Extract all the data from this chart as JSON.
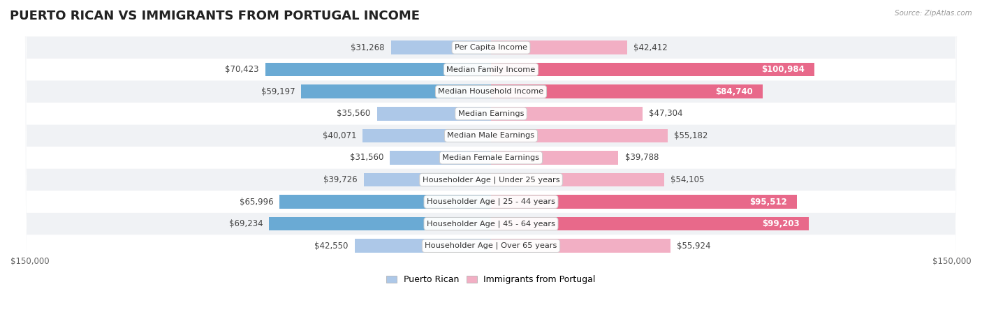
{
  "title": "PUERTO RICAN VS IMMIGRANTS FROM PORTUGAL INCOME",
  "source": "Source: ZipAtlas.com",
  "categories": [
    "Per Capita Income",
    "Median Family Income",
    "Median Household Income",
    "Median Earnings",
    "Median Male Earnings",
    "Median Female Earnings",
    "Householder Age | Under 25 years",
    "Householder Age | 25 - 44 years",
    "Householder Age | 45 - 64 years",
    "Householder Age | Over 65 years"
  ],
  "puerto_rican": [
    31268,
    70423,
    59197,
    35560,
    40071,
    31560,
    39726,
    65996,
    69234,
    42550
  ],
  "portugal": [
    42412,
    100984,
    84740,
    47304,
    55182,
    39788,
    54105,
    95512,
    99203,
    55924
  ],
  "puerto_rican_labels": [
    "$31,268",
    "$70,423",
    "$59,197",
    "$35,560",
    "$40,071",
    "$31,560",
    "$39,726",
    "$65,996",
    "$69,234",
    "$42,550"
  ],
  "portugal_labels": [
    "$42,412",
    "$100,984",
    "$84,740",
    "$47,304",
    "$55,182",
    "$39,788",
    "$54,105",
    "$95,512",
    "$99,203",
    "$55,924"
  ],
  "color_puerto_rican_light": "#adc8e8",
  "color_puerto_rican_dark": "#6aaad4",
  "color_portugal_light": "#f2afc4",
  "color_portugal_dark": "#e8698a",
  "max_value": 150000,
  "bg_odd": "#f0f2f5",
  "bg_even": "#ffffff",
  "label_font_size": 8.5,
  "title_font_size": 13,
  "legend_puerto_rican": "Puerto Rican",
  "legend_portugal": "Immigrants from Portugal",
  "x_label_left": "$150,000",
  "x_label_right": "$150,000",
  "pr_large_threshold": 55000,
  "pt_large_threshold": 80000
}
